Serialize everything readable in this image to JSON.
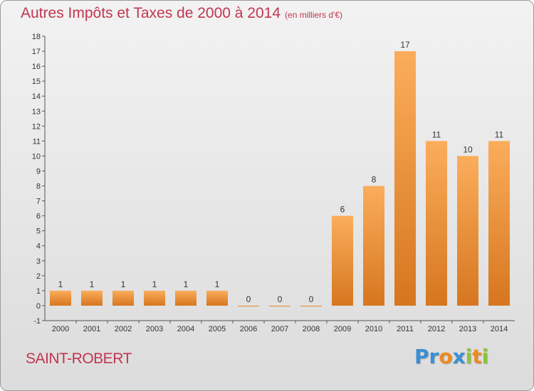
{
  "title": "Autres Impôts et Taxes de 2000 à 2014",
  "subtitle": "(en milliers d'€)",
  "place": "SAINT-ROBERT",
  "logo": {
    "letters": [
      "P",
      "r",
      "o",
      "x",
      "i",
      "t",
      "i"
    ],
    "colors": [
      "#3a8fd6",
      "#3a8fd6",
      "#f08a20",
      "#3a8fd6",
      "#8cc43a",
      "#f08a20",
      "#8cc43a"
    ]
  },
  "colors": {
    "bar_light": "#fbad5c",
    "bar_dark": "#d6761e",
    "label": "#c2364f",
    "axis": "#555555"
  },
  "chart_data": {
    "type": "bar",
    "categories": [
      "2000",
      "2001",
      "2002",
      "2003",
      "2004",
      "2005",
      "2006",
      "2007",
      "2008",
      "2009",
      "2010",
      "2011",
      "2012",
      "2013",
      "2014"
    ],
    "values": [
      1,
      1,
      1,
      1,
      1,
      1,
      0,
      0,
      0,
      6,
      8,
      17,
      11,
      10,
      11
    ],
    "data_labels": [
      "1",
      "1",
      "1",
      "1",
      "1",
      "1",
      "0",
      "0",
      "0",
      "6",
      "8",
      "17",
      "11",
      "10",
      "11"
    ],
    "title": "Autres Impôts et Taxes de 2000 à 2014",
    "xlabel": "",
    "ylabel": "",
    "ylim": [
      -1,
      18
    ],
    "yticks": [
      -1,
      0,
      1,
      2,
      3,
      4,
      5,
      6,
      7,
      8,
      9,
      10,
      11,
      12,
      13,
      14,
      15,
      16,
      17,
      18
    ],
    "grid": false,
    "legend": "none"
  }
}
